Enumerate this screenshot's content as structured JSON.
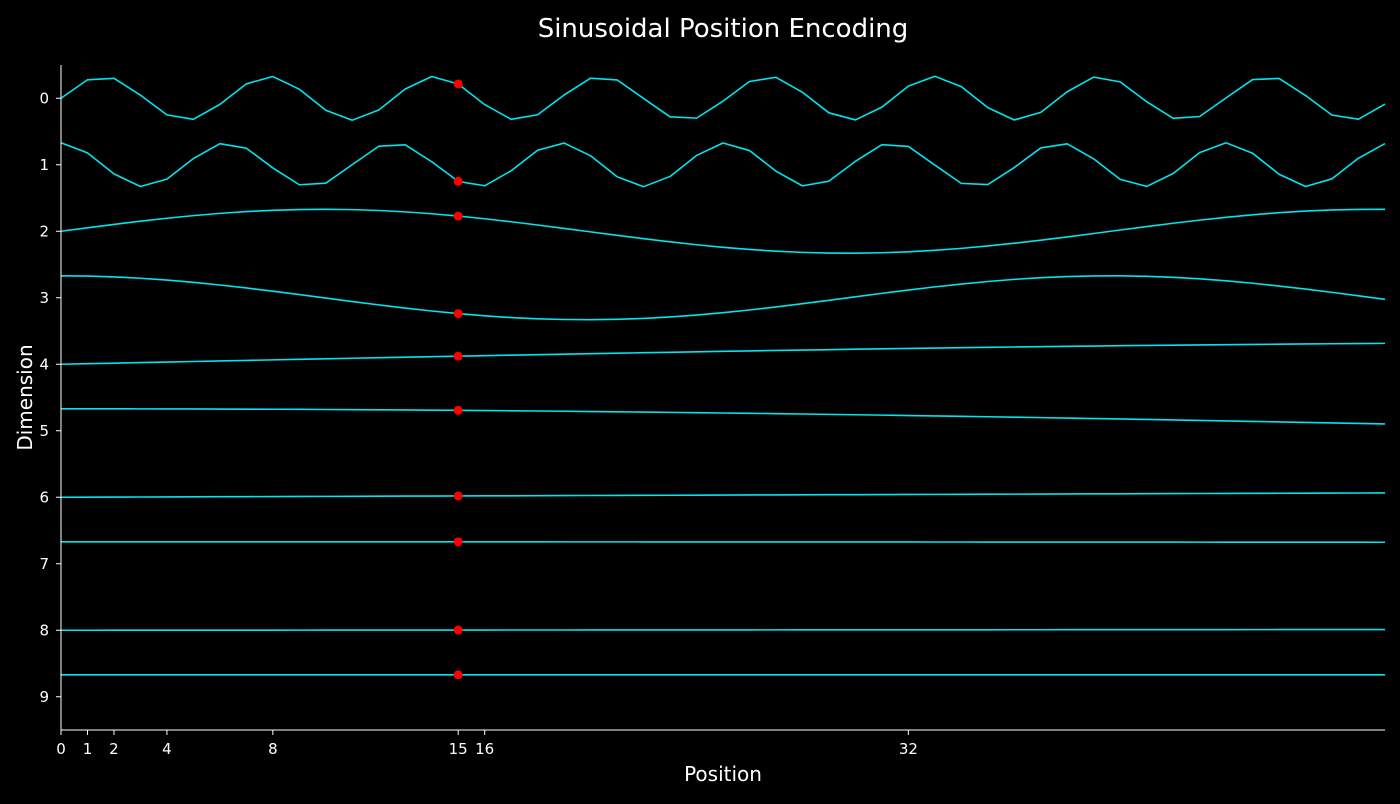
{
  "chart_data": {
    "type": "line",
    "title": "Sinusoidal Position Encoding",
    "xlabel": "Position",
    "ylabel": "Dimension",
    "xlim": [
      0,
      50
    ],
    "ylim": [
      9.5,
      -0.5
    ],
    "y_inverted": true,
    "xticks": [
      0,
      1,
      2,
      4,
      8,
      15,
      16,
      32
    ],
    "xtick_labels": [
      "0",
      "1",
      "2",
      "4",
      "8",
      "15",
      "16",
      "32"
    ],
    "yticks": [
      0,
      1,
      2,
      3,
      4,
      5,
      6,
      7,
      8,
      9
    ],
    "ytick_labels": [
      "0",
      "1",
      "2",
      "3",
      "4",
      "5",
      "6",
      "7",
      "8",
      "9"
    ],
    "highlight_position": 15,
    "d_model": 10,
    "amplitude": 0.33,
    "x_step": 1,
    "series_formula": "y_d = d - amplitude * (d even ? sin(x / 10000^(d/d_model)) : cos(x / 10000^((d-1)/d_model)))",
    "line_color": "#00e5ee",
    "marker_color": "#ff0000",
    "axis_color": "#ffffff",
    "background": "#000000",
    "series": [
      {
        "name": "dim 0",
        "offset": 0,
        "func": "sin",
        "omega": 1.0
      },
      {
        "name": "dim 1",
        "offset": 1,
        "func": "cos",
        "omega": 1.0
      },
      {
        "name": "dim 2",
        "offset": 2,
        "func": "sin",
        "omega": 0.158489
      },
      {
        "name": "dim 3",
        "offset": 3,
        "func": "cos",
        "omega": 0.158489
      },
      {
        "name": "dim 4",
        "offset": 4,
        "func": "sin",
        "omega": 0.025119
      },
      {
        "name": "dim 5",
        "offset": 5,
        "func": "cos",
        "omega": 0.025119
      },
      {
        "name": "dim 6",
        "offset": 6,
        "func": "sin",
        "omega": 0.003981
      },
      {
        "name": "dim 7",
        "offset": 7,
        "func": "cos",
        "omega": 0.003981
      },
      {
        "name": "dim 8",
        "offset": 8,
        "func": "sin",
        "omega": 0.000631
      },
      {
        "name": "dim 9",
        "offset": 9,
        "func": "cos",
        "omega": 0.000631
      }
    ]
  }
}
